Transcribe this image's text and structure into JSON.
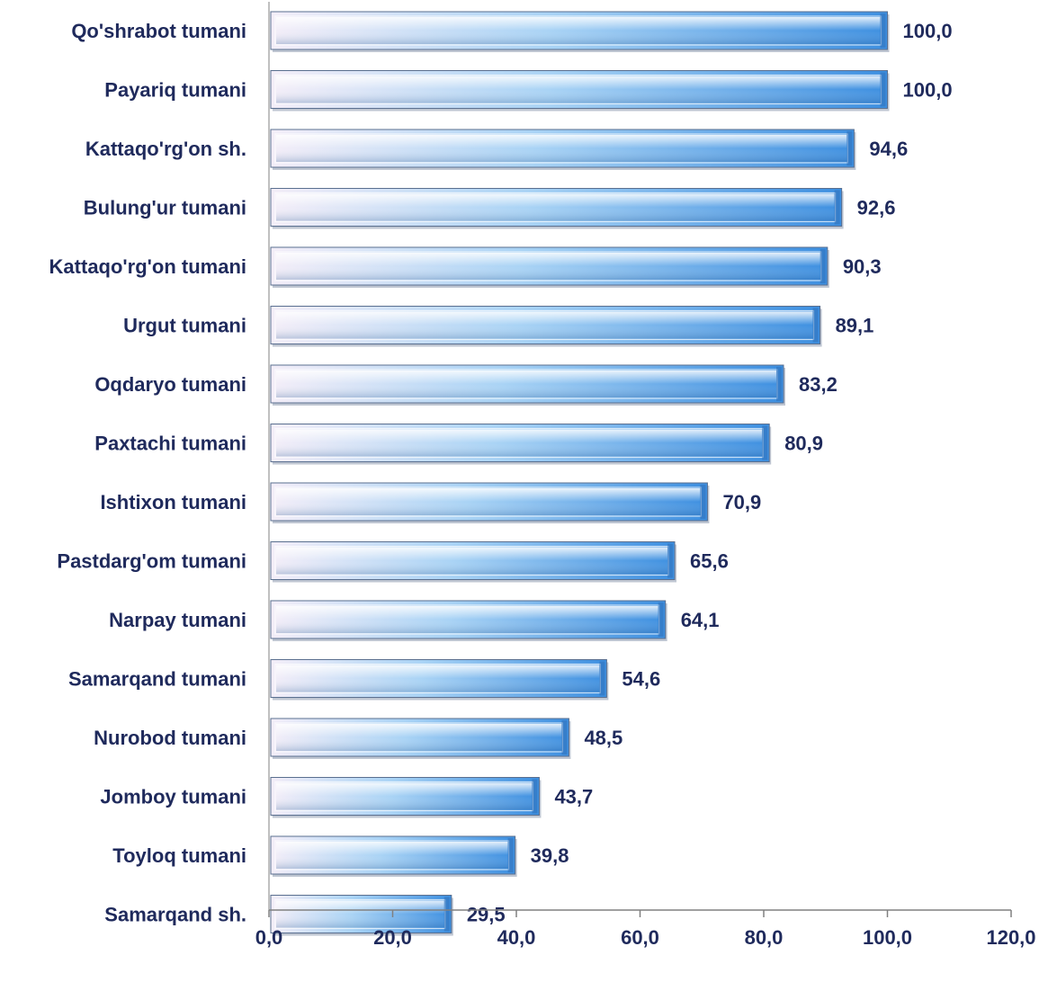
{
  "chart_data": {
    "type": "bar",
    "orientation": "horizontal",
    "categories": [
      "Qo'shrabot tumani",
      "Payariq tumani",
      "Kattaqo'rg'on sh.",
      "Bulung'ur tumani",
      "Kattaqo'rg'on tumani",
      "Urgut tumani",
      "Oqdaryo tumani",
      "Paxtachi tumani",
      "Ishtixon tumani",
      "Pastdarg'om tumani",
      "Narpay tumani",
      "Samarqand tumani",
      "Nurobod tumani",
      "Jomboy tumani",
      "Toyloq tumani",
      "Samarqand sh."
    ],
    "values": [
      100.0,
      100.0,
      94.6,
      92.6,
      90.3,
      89.1,
      83.2,
      80.9,
      70.9,
      65.6,
      64.1,
      54.6,
      48.5,
      43.7,
      39.8,
      29.5
    ],
    "value_labels": [
      "100,0",
      "100,0",
      "94,6",
      "92,6",
      "90,3",
      "89,1",
      "83,2",
      "80,9",
      "70,9",
      "65,6",
      "64,1",
      "54,6",
      "48,5",
      "43,7",
      "39,8",
      "29,5"
    ],
    "xlim": [
      0,
      120
    ],
    "x_ticks": [
      0,
      20,
      40,
      60,
      80,
      100,
      120
    ],
    "x_tick_labels": [
      "0,0",
      "20,0",
      "40,0",
      "60,0",
      "80,0",
      "100,0",
      "120,0"
    ],
    "title": "",
    "xlabel": "",
    "ylabel": "",
    "grid": false,
    "legend": "none",
    "colors": {
      "bar_light": "#f4eef8",
      "bar_mid": "#a9d3f5",
      "bar_dark": "#3d8fe0",
      "bar_edge": "#5a6f8f",
      "text": "#1f2a5c",
      "axis": "#808080"
    }
  }
}
